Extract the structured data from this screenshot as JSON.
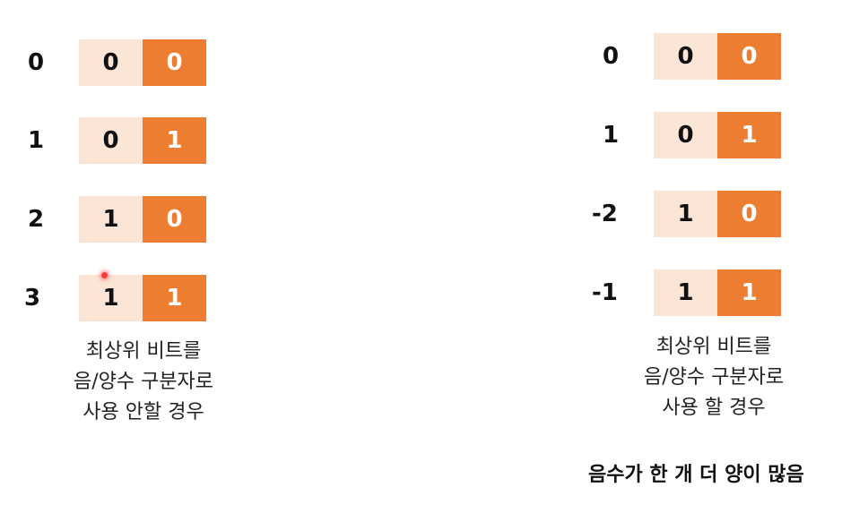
{
  "colors": {
    "msb_cell": "#fbe5d6",
    "lsb_cell": "#ed7d31",
    "lsb_text": "#ffffff"
  },
  "left_table": {
    "rows": [
      {
        "label": "0",
        "bits": [
          "0",
          "0"
        ]
      },
      {
        "label": "1",
        "bits": [
          "0",
          "1"
        ]
      },
      {
        "label": "2",
        "bits": [
          "1",
          "0"
        ]
      },
      {
        "label": "3",
        "bits": [
          "1",
          "1"
        ]
      }
    ],
    "caption": [
      "최상위 비트를",
      "음/양수 구분자로",
      "사용 안할 경우"
    ]
  },
  "right_table": {
    "rows": [
      {
        "label": "0",
        "bits": [
          "0",
          "0"
        ]
      },
      {
        "label": "1",
        "bits": [
          "0",
          "1"
        ]
      },
      {
        "label": "-2",
        "bits": [
          "1",
          "0"
        ]
      },
      {
        "label": "-1",
        "bits": [
          "1",
          "1"
        ]
      }
    ],
    "caption": [
      "최상위 비트를",
      "음/양수 구분자로",
      "사용 할 경우"
    ],
    "note": "음수가 한 개 더 양이 많음"
  }
}
